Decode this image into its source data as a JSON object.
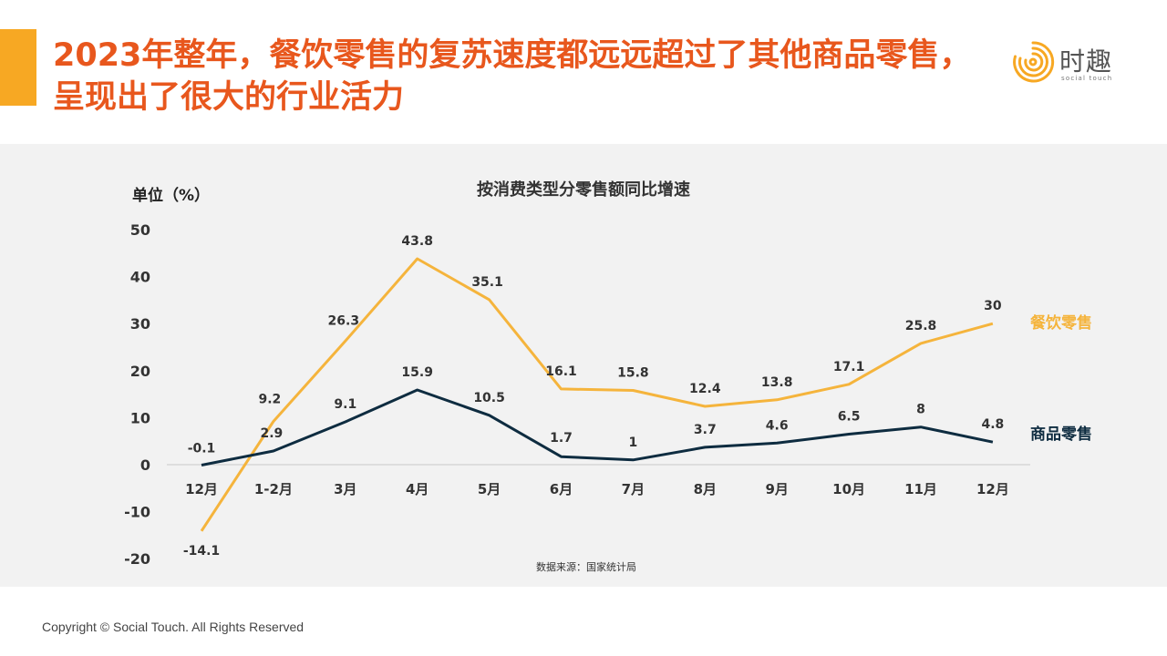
{
  "slide": {
    "headline": "2023年整年，餐饮零售的复苏速度都远远超过了其他商品零售，呈现出了很大的行业活力",
    "logo_name": "时趣",
    "logo_sub": "social touch",
    "footer": "Copyright © Social Touch. All Rights Reserved"
  },
  "colors": {
    "headline": "#E8571D",
    "accent": "#F7A823",
    "catering": "#F5B43C",
    "goods": "#0E2C40",
    "panel": "#F2F2F2"
  },
  "chart_data": {
    "type": "line",
    "title": "按消费类型分零售额同比增速",
    "ylabel": "单位（%）",
    "source": "数据来源：国家统计局",
    "categories": [
      "12月",
      "1-2月",
      "3月",
      "4月",
      "5月",
      "6月",
      "7月",
      "8月",
      "9月",
      "10月",
      "11月",
      "12月"
    ],
    "yticks": [
      50,
      40,
      30,
      20,
      10,
      0,
      -10,
      -20
    ],
    "ylim": [
      -20,
      50
    ],
    "grid": false,
    "legend": "right, at line ends",
    "series": [
      {
        "name": "餐饮零售",
        "color": "#F5B43C",
        "values": [
          -14.1,
          9.2,
          26.3,
          43.8,
          35.1,
          16.1,
          15.8,
          12.4,
          13.8,
          17.1,
          25.8,
          30
        ],
        "labels": [
          "-14.1",
          "9.2",
          "26.3",
          "43.8",
          "35.1",
          "16.1",
          "15.8",
          "12.4",
          "13.8",
          "17.1",
          "25.8",
          "30"
        ]
      },
      {
        "name": "商品零售",
        "color": "#0E2C40",
        "values": [
          -0.1,
          2.9,
          9.1,
          15.9,
          10.5,
          1.7,
          1,
          3.7,
          4.6,
          6.5,
          8,
          4.8
        ],
        "labels": [
          "-0.1",
          "2.9",
          "9.1",
          "15.9",
          "10.5",
          "1.7",
          "1",
          "3.7",
          "4.6",
          "6.5",
          "8",
          "4.8"
        ]
      }
    ]
  }
}
